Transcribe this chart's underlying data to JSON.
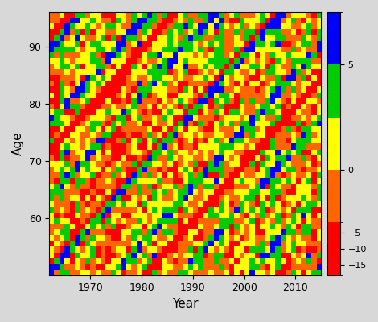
{
  "xlabel": "Year",
  "ylabel": "Age",
  "year_start": 1962,
  "year_end": 2014,
  "age_start": 50,
  "age_end": 95,
  "colorbar_ticks": [
    5,
    0,
    -5,
    -10,
    -15
  ],
  "cmap_colors": [
    "#FF0000",
    "#FF6600",
    "#FFFF00",
    "#00CC00",
    "#0000FF"
  ],
  "cmap_bounds": [
    -18,
    -2,
    0,
    2,
    5,
    10
  ],
  "xticks": [
    1970,
    1980,
    1990,
    2000,
    2010
  ],
  "yticks": [
    60,
    70,
    80,
    90
  ],
  "seed": 42
}
